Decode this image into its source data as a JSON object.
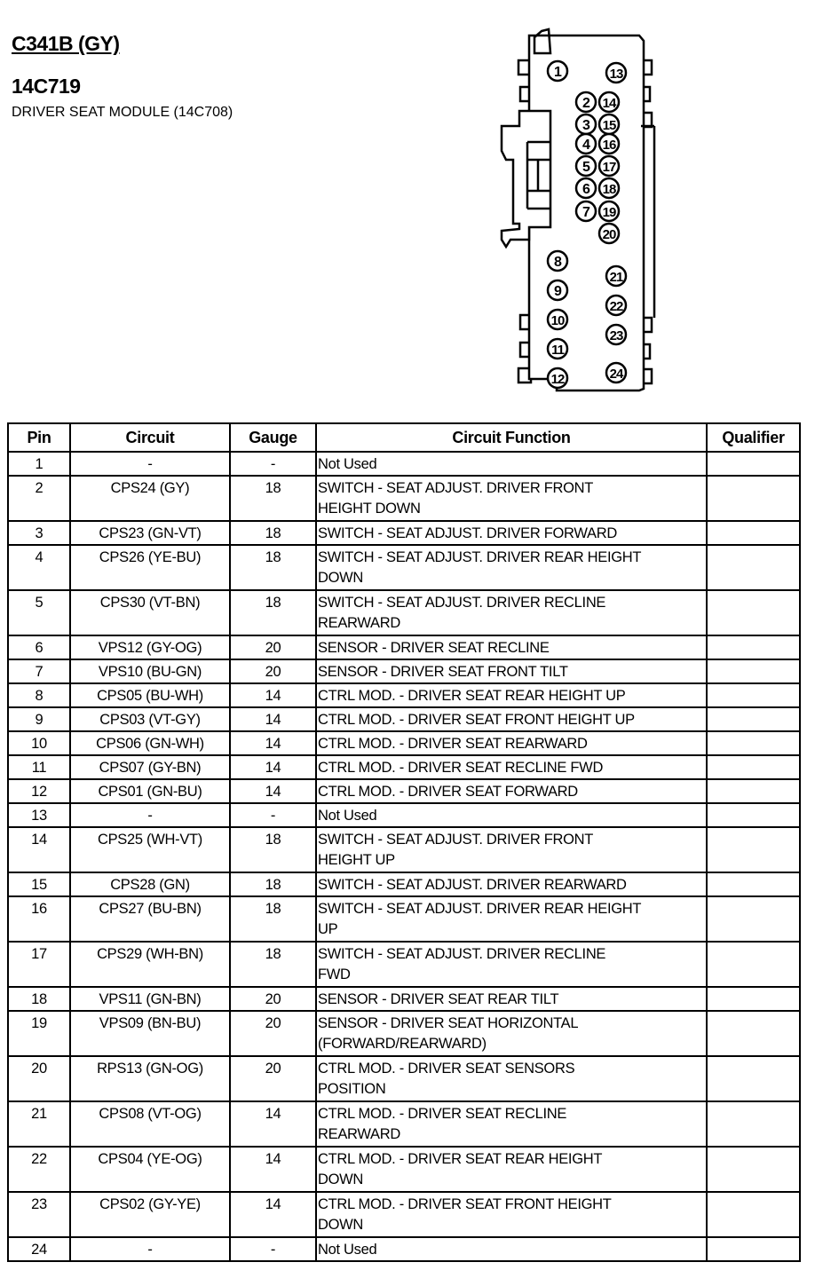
{
  "header": {
    "connector": "C341B (GY)",
    "part_number": "14C719",
    "description": "DRIVER SEAT MODULE (14C708)"
  },
  "connector": {
    "pins": [
      "1",
      "2",
      "3",
      "4",
      "5",
      "6",
      "7",
      "8",
      "9",
      "10",
      "11",
      "12",
      "13",
      "14",
      "15",
      "16",
      "17",
      "18",
      "19",
      "20",
      "21",
      "22",
      "23",
      "24"
    ]
  },
  "table": {
    "columns": [
      "Pin",
      "Circuit",
      "Gauge",
      "Circuit Function",
      "Qualifier"
    ],
    "rows": [
      {
        "pin": "1",
        "circuit": "-",
        "gauge": "-",
        "function": "Not Used",
        "qualifier": ""
      },
      {
        "pin": "2",
        "circuit": "CPS24 (GY)",
        "gauge": "18",
        "function": "SWITCH - SEAT ADJUST. DRIVER FRONT\nHEIGHT DOWN",
        "qualifier": ""
      },
      {
        "pin": "3",
        "circuit": "CPS23 (GN-VT)",
        "gauge": "18",
        "function": "SWITCH - SEAT ADJUST. DRIVER FORWARD",
        "qualifier": ""
      },
      {
        "pin": "4",
        "circuit": "CPS26 (YE-BU)",
        "gauge": "18",
        "function": "SWITCH - SEAT ADJUST. DRIVER REAR HEIGHT\nDOWN",
        "qualifier": ""
      },
      {
        "pin": "5",
        "circuit": "CPS30 (VT-BN)",
        "gauge": "18",
        "function": "SWITCH - SEAT ADJUST. DRIVER RECLINE\nREARWARD",
        "qualifier": ""
      },
      {
        "pin": "6",
        "circuit": "VPS12 (GY-OG)",
        "gauge": "20",
        "function": "SENSOR - DRIVER SEAT RECLINE",
        "qualifier": ""
      },
      {
        "pin": "7",
        "circuit": "VPS10 (BU-GN)",
        "gauge": "20",
        "function": "SENSOR - DRIVER SEAT FRONT TILT",
        "qualifier": ""
      },
      {
        "pin": "8",
        "circuit": "CPS05 (BU-WH)",
        "gauge": "14",
        "function": "CTRL MOD. - DRIVER SEAT REAR HEIGHT UP",
        "qualifier": ""
      },
      {
        "pin": "9",
        "circuit": "CPS03 (VT-GY)",
        "gauge": "14",
        "function": "CTRL MOD. - DRIVER SEAT FRONT HEIGHT UP",
        "qualifier": ""
      },
      {
        "pin": "10",
        "circuit": "CPS06 (GN-WH)",
        "gauge": "14",
        "function": "CTRL MOD. - DRIVER SEAT REARWARD",
        "qualifier": ""
      },
      {
        "pin": "11",
        "circuit": "CPS07 (GY-BN)",
        "gauge": "14",
        "function": "CTRL MOD. - DRIVER SEAT RECLINE FWD",
        "qualifier": ""
      },
      {
        "pin": "12",
        "circuit": "CPS01 (GN-BU)",
        "gauge": "14",
        "function": "CTRL MOD. - DRIVER SEAT FORWARD",
        "qualifier": ""
      },
      {
        "pin": "13",
        "circuit": "-",
        "gauge": "-",
        "function": "Not Used",
        "qualifier": ""
      },
      {
        "pin": "14",
        "circuit": "CPS25 (WH-VT)",
        "gauge": "18",
        "function": "SWITCH - SEAT ADJUST. DRIVER FRONT\nHEIGHT UP",
        "qualifier": ""
      },
      {
        "pin": "15",
        "circuit": "CPS28 (GN)",
        "gauge": "18",
        "function": "SWITCH - SEAT ADJUST. DRIVER REARWARD",
        "qualifier": ""
      },
      {
        "pin": "16",
        "circuit": "CPS27 (BU-BN)",
        "gauge": "18",
        "function": "SWITCH - SEAT ADJUST. DRIVER REAR HEIGHT\nUP",
        "qualifier": ""
      },
      {
        "pin": "17",
        "circuit": "CPS29 (WH-BN)",
        "gauge": "18",
        "function": "SWITCH - SEAT ADJUST. DRIVER RECLINE\nFWD",
        "qualifier": ""
      },
      {
        "pin": "18",
        "circuit": "VPS11 (GN-BN)",
        "gauge": "20",
        "function": "SENSOR - DRIVER SEAT REAR TILT",
        "qualifier": ""
      },
      {
        "pin": "19",
        "circuit": "VPS09 (BN-BU)",
        "gauge": "20",
        "function": "SENSOR - DRIVER SEAT HORIZONTAL\n(FORWARD/REARWARD)",
        "qualifier": ""
      },
      {
        "pin": "20",
        "circuit": "RPS13 (GN-OG)",
        "gauge": "20",
        "function": "CTRL MOD. - DRIVER SEAT SENSORS\nPOSITION",
        "qualifier": ""
      },
      {
        "pin": "21",
        "circuit": "CPS08 (VT-OG)",
        "gauge": "14",
        "function": "CTRL MOD. - DRIVER SEAT RECLINE\nREARWARD",
        "qualifier": ""
      },
      {
        "pin": "22",
        "circuit": "CPS04 (YE-OG)",
        "gauge": "14",
        "function": "CTRL MOD. - DRIVER SEAT REAR HEIGHT\nDOWN",
        "qualifier": ""
      },
      {
        "pin": "23",
        "circuit": "CPS02 (GY-YE)",
        "gauge": "14",
        "function": "CTRL MOD. - DRIVER SEAT FRONT HEIGHT\nDOWN",
        "qualifier": ""
      },
      {
        "pin": "24",
        "circuit": "-",
        "gauge": "-",
        "function": "Not Used",
        "qualifier": ""
      }
    ]
  }
}
